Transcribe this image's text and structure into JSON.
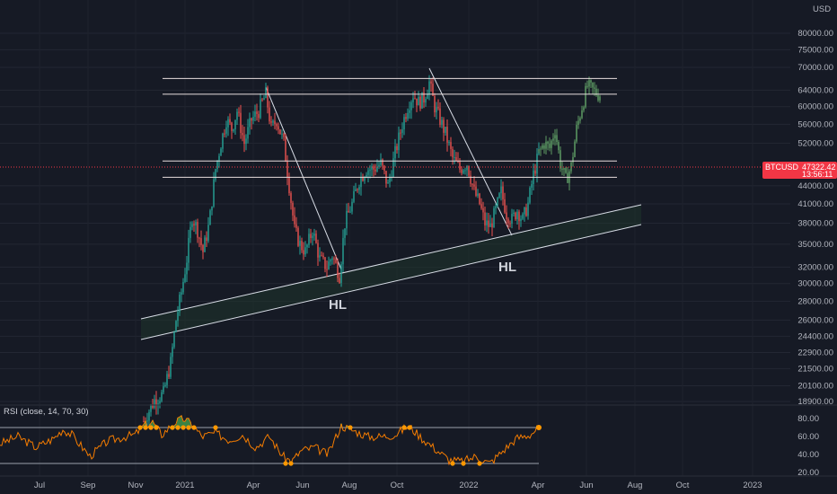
{
  "chart_data": {
    "type": "candlestick",
    "symbol": "BTCUSD",
    "currency": "USD",
    "current_price": "47322.42",
    "countdown": "13:56:11",
    "y_ticks": [
      "80000.00",
      "75000.00",
      "70000.00",
      "64000.00",
      "60000.00",
      "56000.00",
      "52000.00",
      "44000.00",
      "41000.00",
      "38000.00",
      "35000.00",
      "32000.00",
      "30000.00",
      "28000.00",
      "26000.00",
      "24400.00",
      "22900.00",
      "21500.00",
      "20100.00",
      "18900.00"
    ],
    "x_ticks": [
      "Jul",
      "Sep",
      "Nov",
      "2021",
      "Apr",
      "Jun",
      "Aug",
      "Oct",
      "2022",
      "Apr",
      "Jun",
      "Aug",
      "Oct",
      "2023"
    ],
    "ylim": [
      18000,
      88000
    ],
    "y_scale": "log",
    "horizontal_levels": [
      67000,
      63000,
      48500,
      45500
    ],
    "annotations": [
      "HL",
      "HL"
    ],
    "indicator": {
      "title": "RSI (close, 14, 70, 30)",
      "levels": [
        70,
        30
      ],
      "y_ticks": [
        "80.00",
        "60.00",
        "40.00",
        "20.00"
      ],
      "ylim": [
        15,
        90
      ]
    },
    "colors": {
      "up": "#26a69a",
      "down": "#ef5350",
      "forecast": "#5d9b63",
      "rsi_line": "#f57c00",
      "level_line": "#ffffff",
      "price_line": "#f23645"
    }
  }
}
